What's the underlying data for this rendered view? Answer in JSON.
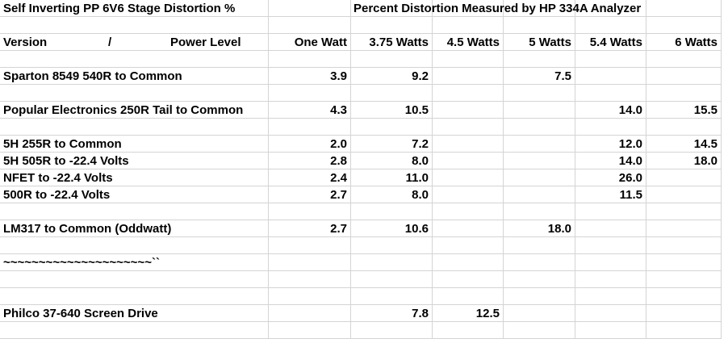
{
  "title_left": "Self Inverting PP 6V6 Stage Distortion %",
  "title_right": "Percent Distortion Measured by HP 334A Analyzer",
  "header": {
    "version": "Version",
    "slash": "/",
    "power_level": "Power Level",
    "columns": [
      "One Watt",
      "3.75 Watts",
      "4.5 Watts",
      "5 Watts",
      "5.4 Watts",
      "6 Watts"
    ]
  },
  "rows": [
    {
      "label": "Sparton 8549 540R to Common",
      "values": [
        "3.9",
        "9.2",
        "",
        "7.5",
        "",
        ""
      ]
    },
    {
      "label": "Popular Electronics 250R Tail to Common",
      "values": [
        "4.3",
        "10.5",
        "",
        "",
        "14.0",
        "15.5"
      ]
    },
    {
      "label": "5H 255R to Common",
      "values": [
        "2.0",
        "7.2",
        "",
        "",
        "12.0",
        "14.5"
      ]
    },
    {
      "label": "5H 505R to -22.4 Volts",
      "values": [
        "2.8",
        "8.0",
        "",
        "",
        "14.0",
        "18.0"
      ]
    },
    {
      "label": "NFET to -22.4 Volts",
      "values": [
        "2.4",
        "11.0",
        "",
        "",
        "26.0",
        ""
      ]
    },
    {
      "label": "500R to -22.4 Volts",
      "values": [
        "2.7",
        "8.0",
        "",
        "",
        "11.5",
        ""
      ]
    },
    {
      "label": "LM317 to Common (Oddwatt)",
      "values": [
        "2.7",
        "10.6",
        "",
        "18.0",
        "",
        ""
      ]
    },
    {
      "label": "~~~~~~~~~~~~~~~~~~~~~``",
      "values": [
        "",
        "",
        "",
        "",
        "",
        ""
      ]
    },
    {
      "label": "Philco 37-640 Screen Drive",
      "values": [
        "",
        "7.8",
        "12.5",
        "",
        "",
        ""
      ]
    }
  ]
}
